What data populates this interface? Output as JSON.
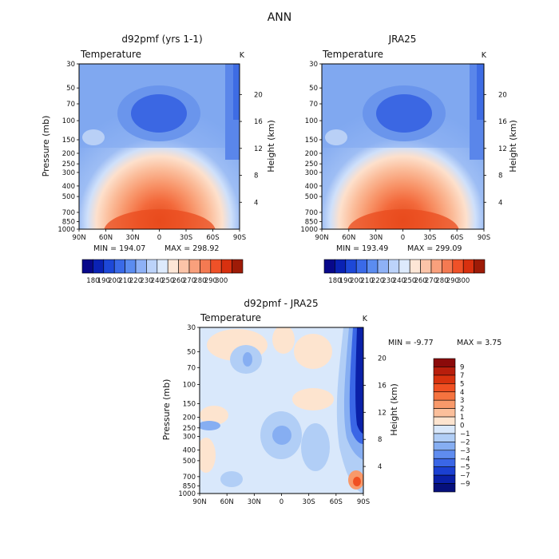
{
  "figure": {
    "title": "ANN",
    "background": "#ffffff"
  },
  "chart_data": [
    {
      "type": "heatmap",
      "title": "d92pmf (yrs 1-1)",
      "annotation_left": "Temperature",
      "annotation_right": "K",
      "xlabel": "",
      "ylabel": "Pressure (mb)",
      "ylabel_right": "Height (km)",
      "x_ticks": [
        "90N",
        "60N",
        "30N",
        "0",
        "30S",
        "60S",
        "90S"
      ],
      "y_ticks": [
        "30",
        "50",
        "70",
        "100",
        "150",
        "200",
        "250",
        "300",
        "400",
        "500",
        "700",
        "850",
        "1000"
      ],
      "height_ticks": [
        "20",
        "16",
        "12",
        "8",
        "4"
      ],
      "ylim": [
        1000,
        30
      ],
      "min_label": "MIN = 194.07",
      "max_label": "MAX = 298.92",
      "colorbar": {
        "orientation": "horizontal",
        "labels": [
          "180",
          "190",
          "200",
          "210",
          "220",
          "230",
          "240",
          "250",
          "260",
          "270",
          "280",
          "290",
          "300"
        ],
        "colors": [
          "#08088a",
          "#0a22b4",
          "#1d48d8",
          "#3a6ae8",
          "#5b8cf0",
          "#8eb1f6",
          "#bcd3fa",
          "#ddeafc",
          "#fde6d6",
          "#fcc4a8",
          "#f9a07c",
          "#f47a52",
          "#ef5128",
          "#d8300f",
          "#9e1b07"
        ]
      }
    },
    {
      "type": "heatmap",
      "title": "JRA25",
      "annotation_left": "Temperature",
      "annotation_right": "K",
      "xlabel": "",
      "ylabel": "",
      "ylabel_right": "Height (km)",
      "x_ticks": [
        "90N",
        "60N",
        "30N",
        "0",
        "30S",
        "60S",
        "90S"
      ],
      "y_ticks": [
        "30",
        "50",
        "70",
        "100",
        "150",
        "200",
        "250",
        "300",
        "400",
        "500",
        "700",
        "850",
        "1000"
      ],
      "height_ticks": [
        "20",
        "16",
        "12",
        "8",
        "4"
      ],
      "ylim": [
        1000,
        30
      ],
      "min_label": "MIN = 193.49",
      "max_label": "MAX = 299.09",
      "colorbar": {
        "orientation": "horizontal",
        "labels": [
          "180",
          "190",
          "200",
          "210",
          "220",
          "230",
          "240",
          "250",
          "260",
          "270",
          "280",
          "290",
          "300"
        ],
        "colors": [
          "#08088a",
          "#0a22b4",
          "#1d48d8",
          "#3a6ae8",
          "#5b8cf0",
          "#8eb1f6",
          "#bcd3fa",
          "#ddeafc",
          "#fde6d6",
          "#fcc4a8",
          "#f9a07c",
          "#f47a52",
          "#ef5128",
          "#d8300f",
          "#9e1b07"
        ]
      }
    },
    {
      "type": "heatmap",
      "title": "d92pmf - JRA25",
      "annotation_left": "Temperature",
      "annotation_right": "K",
      "xlabel": "",
      "ylabel": "Pressure (mb)",
      "ylabel_right": "Height (km)",
      "x_ticks": [
        "90N",
        "60N",
        "30N",
        "0",
        "30S",
        "60S",
        "90S"
      ],
      "y_ticks": [
        "30",
        "50",
        "70",
        "100",
        "150",
        "200",
        "250",
        "300",
        "400",
        "500",
        "700",
        "850",
        "1000"
      ],
      "height_ticks": [
        "20",
        "16",
        "12",
        "8",
        "4"
      ],
      "ylim": [
        1000,
        30
      ],
      "min_label": "MIN = -9.77",
      "max_label": "MAX = 3.75",
      "colorbar": {
        "orientation": "vertical",
        "labels": [
          "9",
          "7",
          "5",
          "4",
          "3",
          "2",
          "1",
          "0",
          "-1",
          "-2",
          "-3",
          "-4",
          "-5",
          "-7",
          "-9"
        ],
        "colors": [
          "#8b0a0a",
          "#b81e0c",
          "#d8320e",
          "#f05022",
          "#f5733f",
          "#f8996a",
          "#fbbf9b",
          "#fde4cf",
          "#d9e8fb",
          "#b1cef6",
          "#86aef2",
          "#5f8cef",
          "#3a66e6",
          "#1b40d2",
          "#0a20a8",
          "#06107c"
        ]
      }
    }
  ]
}
